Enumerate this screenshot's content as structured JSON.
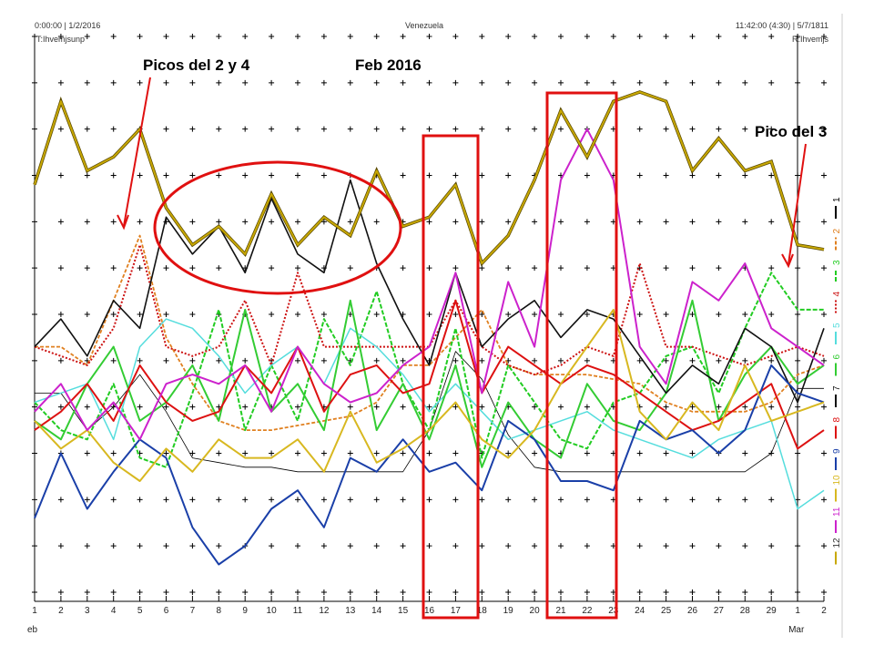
{
  "header": {
    "left_top": "0:00:00 | 1/2/2016",
    "left_bottom": "T:Ihvemjsunp",
    "center": "Venezuela",
    "right_top": "11:42:00 (4:30) | 5/7/1811",
    "right_bottom": "R:Ihvemjs"
  },
  "annotations": {
    "picos": "Picos del 2 y 4",
    "feb": "Feb 2016",
    "pico3": "Pico del 3"
  },
  "chart_data": {
    "type": "line",
    "title": "Venezuela",
    "xlabel": "",
    "ylabel": "",
    "x": [
      "1",
      "2",
      "3",
      "4",
      "5",
      "6",
      "7",
      "8",
      "9",
      "10",
      "11",
      "12",
      "13",
      "14",
      "15",
      "16",
      "17",
      "18",
      "19",
      "20",
      "21",
      "22",
      "23",
      "24",
      "25",
      "26",
      "27",
      "28",
      "29",
      "1",
      "2"
    ],
    "month_labels": [
      {
        "index": 0,
        "label": "eb"
      },
      {
        "index": 29,
        "label": "Mar"
      }
    ],
    "ylim": [
      0,
      12
    ],
    "grid": "crosses",
    "legend": "right-vertical",
    "series": [
      {
        "name": "1",
        "color": "#000000",
        "dash": "",
        "width": 0.8,
        "values": [
          4.3,
          4.3,
          3.5,
          4.0,
          4.7,
          3.9,
          2.9,
          2.8,
          2.7,
          2.7,
          2.6,
          2.6,
          2.6,
          2.6,
          2.6,
          3.5,
          5.2,
          4.6,
          3.4,
          2.7,
          2.6,
          2.6,
          2.6,
          2.6,
          2.6,
          2.6,
          2.6,
          2.6,
          3.0,
          4.4,
          4.4
        ]
      },
      {
        "name": "2",
        "color": "#e08020",
        "dash": "4 2",
        "width": 1.8,
        "values": [
          5.3,
          5.3,
          4.9,
          6.3,
          7.7,
          5.5,
          4.5,
          3.7,
          3.5,
          3.5,
          3.6,
          3.7,
          3.8,
          4.1,
          4.9,
          4.9,
          5.5,
          6.1,
          4.9,
          4.7,
          4.7,
          4.7,
          4.6,
          4.5,
          4.1,
          3.9,
          3.9,
          3.9,
          4.1,
          4.7,
          4.9
        ]
      },
      {
        "name": "3",
        "color": "#22cc22",
        "dash": "5 2",
        "width": 2,
        "values": [
          4.1,
          3.5,
          3.3,
          4.5,
          2.9,
          2.7,
          4.3,
          6.1,
          3.5,
          4.9,
          3.7,
          5.9,
          4.9,
          6.5,
          4.5,
          3.5,
          5.7,
          2.9,
          4.9,
          4.1,
          3.3,
          3.1,
          4.1,
          4.3,
          5.1,
          5.3,
          4.3,
          5.7,
          6.9,
          6.1,
          6.1
        ]
      },
      {
        "name": "4",
        "color": "#cc1111",
        "dash": "2 2",
        "width": 2,
        "values": [
          5.3,
          5.1,
          4.9,
          5.7,
          7.5,
          5.3,
          5.1,
          5.3,
          6.3,
          4.9,
          6.9,
          5.3,
          5.3,
          5.3,
          5.3,
          5.3,
          6.3,
          5.3,
          4.9,
          4.7,
          4.9,
          5.3,
          5.1,
          7.1,
          5.3,
          5.3,
          5.1,
          4.9,
          5.1,
          5.3,
          5.1
        ]
      },
      {
        "name": "5",
        "color": "#55dddd",
        "dash": "",
        "width": 1.5,
        "values": [
          4.1,
          4.3,
          4.5,
          3.3,
          5.3,
          5.9,
          5.7,
          5.1,
          4.3,
          4.9,
          5.3,
          4.5,
          5.7,
          5.3,
          4.7,
          3.9,
          4.5,
          3.9,
          3.3,
          3.5,
          3.7,
          3.9,
          3.5,
          3.3,
          3.1,
          2.9,
          3.3,
          3.5,
          3.7,
          1.8,
          2.2
        ]
      },
      {
        "name": "6",
        "color": "#33cc33",
        "dash": "",
        "width": 2,
        "values": [
          3.7,
          3.3,
          4.5,
          5.3,
          3.7,
          4.1,
          4.9,
          3.7,
          6.1,
          3.9,
          4.5,
          3.5,
          6.3,
          3.5,
          4.5,
          3.3,
          4.9,
          2.7,
          4.1,
          3.3,
          2.9,
          4.5,
          3.7,
          3.5,
          4.3,
          6.3,
          3.7,
          4.7,
          5.3,
          4.5,
          4.9
        ]
      },
      {
        "name": "7",
        "color": "#111111",
        "dash": "",
        "width": 1.6,
        "values": [
          5.3,
          5.9,
          5.1,
          6.3,
          5.7,
          8.1,
          7.3,
          7.9,
          6.9,
          8.5,
          7.3,
          6.9,
          8.9,
          7.1,
          5.9,
          4.9,
          6.9,
          5.3,
          5.9,
          6.3,
          5.5,
          6.1,
          5.9,
          5.1,
          4.3,
          4.9,
          4.5,
          5.7,
          5.3,
          4.1,
          5.7
        ]
      },
      {
        "name": "8",
        "color": "#dd1111",
        "dash": "",
        "width": 2,
        "values": [
          3.5,
          3.9,
          4.5,
          3.7,
          4.9,
          4.1,
          3.7,
          3.9,
          4.9,
          4.3,
          5.3,
          3.9,
          4.7,
          4.9,
          4.3,
          4.5,
          6.3,
          4.3,
          5.3,
          4.9,
          4.5,
          4.9,
          4.7,
          4.3,
          3.9,
          3.5,
          3.7,
          4.1,
          4.5,
          3.1,
          3.5
        ]
      },
      {
        "name": "9",
        "color": "#1a3fa8",
        "dash": "",
        "width": 2,
        "values": [
          1.6,
          3.0,
          1.8,
          2.6,
          3.3,
          2.9,
          1.4,
          0.6,
          1.0,
          1.8,
          2.2,
          1.4,
          2.9,
          2.6,
          3.3,
          2.6,
          2.8,
          2.2,
          3.7,
          3.3,
          2.4,
          2.4,
          2.2,
          3.7,
          3.3,
          3.5,
          3.0,
          3.5,
          4.9,
          4.3,
          4.1
        ]
      },
      {
        "name": "10",
        "color": "#d8b820",
        "dash": "",
        "width": 2,
        "values": [
          3.7,
          3.1,
          3.5,
          2.8,
          2.4,
          3.1,
          2.6,
          3.3,
          2.9,
          2.9,
          3.3,
          2.6,
          3.9,
          2.8,
          3.1,
          3.5,
          4.1,
          3.3,
          2.9,
          3.5,
          4.5,
          5.3,
          6.1,
          3.9,
          3.3,
          4.1,
          3.5,
          4.9,
          3.7,
          3.9,
          4.1
        ]
      },
      {
        "name": "11",
        "color": "#cc22cc",
        "dash": "",
        "width": 2,
        "values": [
          3.9,
          4.5,
          3.5,
          4.1,
          3.3,
          4.5,
          4.7,
          4.5,
          4.9,
          3.9,
          5.3,
          4.5,
          4.1,
          4.3,
          4.9,
          5.3,
          6.9,
          4.3,
          6.7,
          5.3,
          8.9,
          10.0,
          8.9,
          5.3,
          4.5,
          6.7,
          6.3,
          7.1,
          5.7,
          5.3,
          4.9
        ]
      },
      {
        "name": "12",
        "color": "#c8a800",
        "dash": "",
        "width": 2,
        "values": [
          8.8,
          10.6,
          9.1,
          9.4,
          10.0,
          8.3,
          7.5,
          7.9,
          7.3,
          8.6,
          7.5,
          8.1,
          7.7,
          9.1,
          7.9,
          8.1,
          8.8,
          7.1,
          7.7,
          8.9,
          10.4,
          9.4,
          10.6,
          10.8,
          10.6,
          9.1,
          9.8,
          9.1,
          9.3,
          7.5,
          7.4
        ]
      }
    ]
  },
  "colors": {
    "highlight": "#e01010"
  }
}
